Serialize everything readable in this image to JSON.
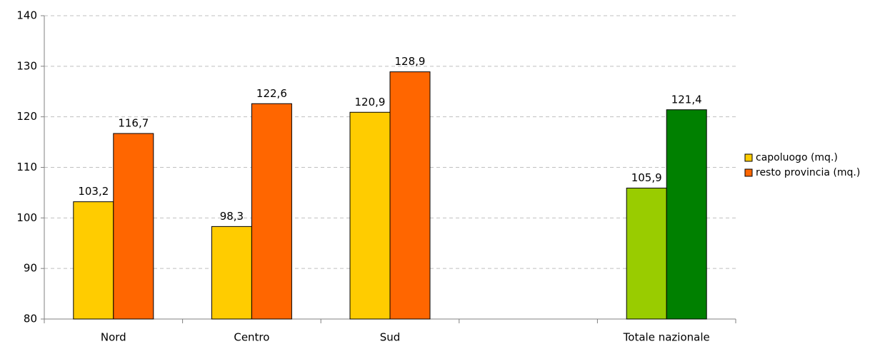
{
  "chart_data": {
    "type": "bar",
    "categories": [
      "Nord",
      "Centro",
      "Sud",
      null,
      "Totale nazionale"
    ],
    "series": [
      {
        "name": "capoluogo (mq.)",
        "color": "#ffcc00",
        "colors": [
          "#ffcc00",
          "#ffcc00",
          "#ffcc00",
          null,
          "#99cc00"
        ],
        "values": [
          103.2,
          98.3,
          120.9,
          null,
          105.9
        ],
        "value_labels": [
          "103,2",
          "98,3",
          "120,9",
          null,
          "105,9"
        ]
      },
      {
        "name": "resto provincia (mq.)",
        "color": "#ff6600",
        "colors": [
          "#ff6600",
          "#ff6600",
          "#ff6600",
          null,
          "#008000"
        ],
        "values": [
          116.7,
          122.6,
          128.9,
          null,
          121.4
        ],
        "value_labels": [
          "116,7",
          "122,6",
          "128,9",
          null,
          "121,4"
        ]
      }
    ],
    "ylim": [
      80,
      140
    ],
    "yticks": [
      80,
      90,
      100,
      110,
      120,
      130,
      140
    ],
    "grid": true,
    "legend": "right"
  }
}
